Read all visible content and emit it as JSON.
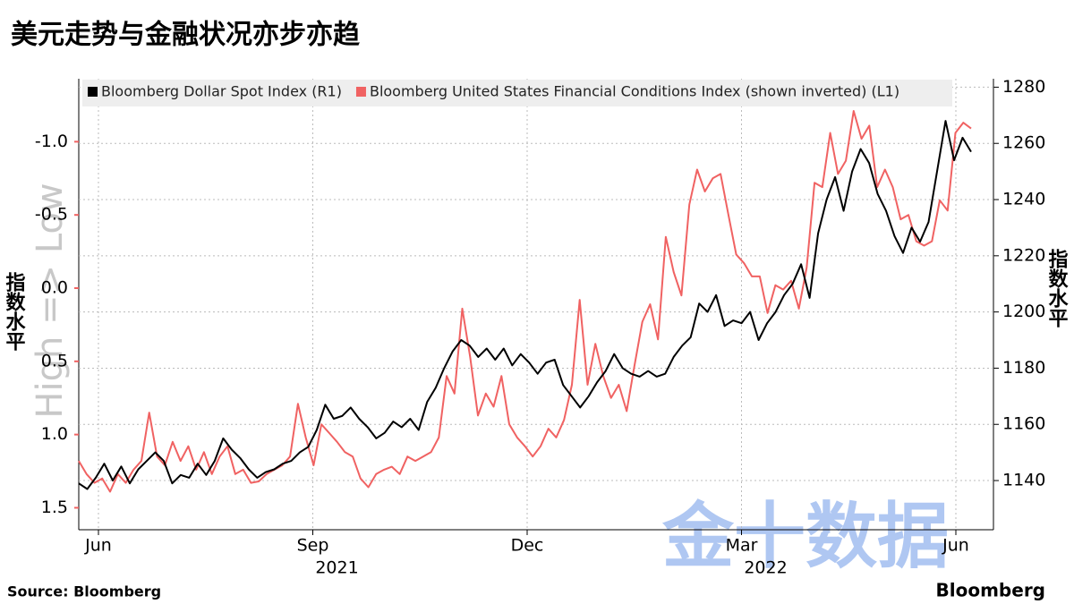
{
  "chart_data": {
    "type": "line",
    "title": "美元走势与金融状况亦步亦趋",
    "y_label": "指数水平",
    "y2_label": "指数水平",
    "annotation": "High => Low",
    "source": "Source: Bloomberg",
    "logo": "Bloomberg",
    "watermark": "金十数据",
    "xlim": [
      "2021-06",
      "2022-06"
    ],
    "xticks": [
      {
        "value": "2021-06",
        "label": "Jun"
      },
      {
        "value": "2021-09",
        "label": "Sep"
      },
      {
        "value": "2021-12",
        "label": "Dec"
      },
      {
        "value": "2022-03",
        "label": "Mar"
      },
      {
        "value": "2022-06",
        "label": "Jun"
      }
    ],
    "year_labels": [
      {
        "value": "2021-09",
        "label": "2021"
      },
      {
        "value": "2022-03",
        "label": "2022"
      }
    ],
    "ylim": [
      1.65,
      -1.43
    ],
    "yticks": [
      {
        "value": -1.0,
        "label": "-1.0"
      },
      {
        "value": -0.5,
        "label": "-0.5"
      },
      {
        "value": 0,
        "label": "0.0"
      },
      {
        "value": 0.5,
        "label": "0.5"
      },
      {
        "value": 1.0,
        "label": "1.0"
      },
      {
        "value": 1.5,
        "label": "1.5"
      }
    ],
    "y2lim": [
      1122.5,
      1283
    ],
    "y2ticks": [
      1140,
      1160,
      1180,
      1200,
      1220,
      1240,
      1260,
      1280
    ],
    "grid": true,
    "series": [
      {
        "name": "Bloomberg Dollar Spot Index (R1)",
        "color": "#000000",
        "axis": "y2",
        "values": [
          1139,
          1137,
          1141,
          1146,
          1140,
          1145,
          1139,
          1144,
          1147,
          1150,
          1147,
          1139,
          1142,
          1141,
          1146,
          1142,
          1147,
          1155,
          1151,
          1148,
          1144,
          1141,
          1143,
          1144,
          1146,
          1147,
          1150,
          1152,
          1158,
          1167,
          1162,
          1163,
          1166,
          1162,
          1159,
          1155,
          1157,
          1161,
          1159,
          1162,
          1158,
          1168,
          1173,
          1180,
          1186,
          1190,
          1188,
          1184,
          1187,
          1183,
          1187,
          1181,
          1185,
          1182,
          1178,
          1182,
          1183,
          1174,
          1170,
          1166,
          1170,
          1175,
          1179,
          1185,
          1180,
          1178,
          1177,
          1179,
          1177,
          1178,
          1184,
          1188,
          1191,
          1203,
          1200,
          1206,
          1195,
          1197,
          1196,
          1200,
          1190,
          1196,
          1200,
          1206,
          1210,
          1217,
          1205,
          1228,
          1240,
          1248,
          1236,
          1250,
          1258,
          1253,
          1242,
          1236,
          1227,
          1221,
          1230,
          1225,
          1232,
          1250,
          1268,
          1254,
          1262,
          1257
        ]
      },
      {
        "name": "Bloomberg United States Financial Conditions Index (shown inverted) (L1)",
        "color": "#f06262",
        "axis": "y",
        "values": [
          1.18,
          1.27,
          1.33,
          1.3,
          1.39,
          1.27,
          1.33,
          1.24,
          1.18,
          0.85,
          1.15,
          1.21,
          1.05,
          1.18,
          1.08,
          1.24,
          1.12,
          1.27,
          1.15,
          1.08,
          1.27,
          1.24,
          1.33,
          1.32,
          1.27,
          1.24,
          1.21,
          1.15,
          0.79,
          1.02,
          1.21,
          0.93,
          0.99,
          1.05,
          1.12,
          1.15,
          1.3,
          1.36,
          1.27,
          1.24,
          1.22,
          1.27,
          1.15,
          1.18,
          1.15,
          1.12,
          1.02,
          0.6,
          0.72,
          0.14,
          0.47,
          0.87,
          0.72,
          0.81,
          0.6,
          0.93,
          1.02,
          1.08,
          1.15,
          1.08,
          0.96,
          1.02,
          0.9,
          0.66,
          0.08,
          0.66,
          0.38,
          0.6,
          0.75,
          0.66,
          0.84,
          0.53,
          0.23,
          0.11,
          0.35,
          -0.35,
          -0.11,
          0.05,
          -0.57,
          -0.81,
          -0.66,
          -0.75,
          -0.78,
          -0.5,
          -0.23,
          -0.17,
          -0.08,
          -0.08,
          0.17,
          -0.02,
          0.01,
          -0.05,
          0.14,
          -0.14,
          -0.72,
          -0.69,
          -1.06,
          -0.78,
          -0.87,
          -1.21,
          -1.02,
          -1.11,
          -0.69,
          -0.81,
          -0.69,
          -0.47,
          -0.5,
          -0.32,
          -0.29,
          -0.32,
          -0.6,
          -0.53,
          -1.06,
          -1.13,
          -1.09
        ]
      }
    ]
  }
}
